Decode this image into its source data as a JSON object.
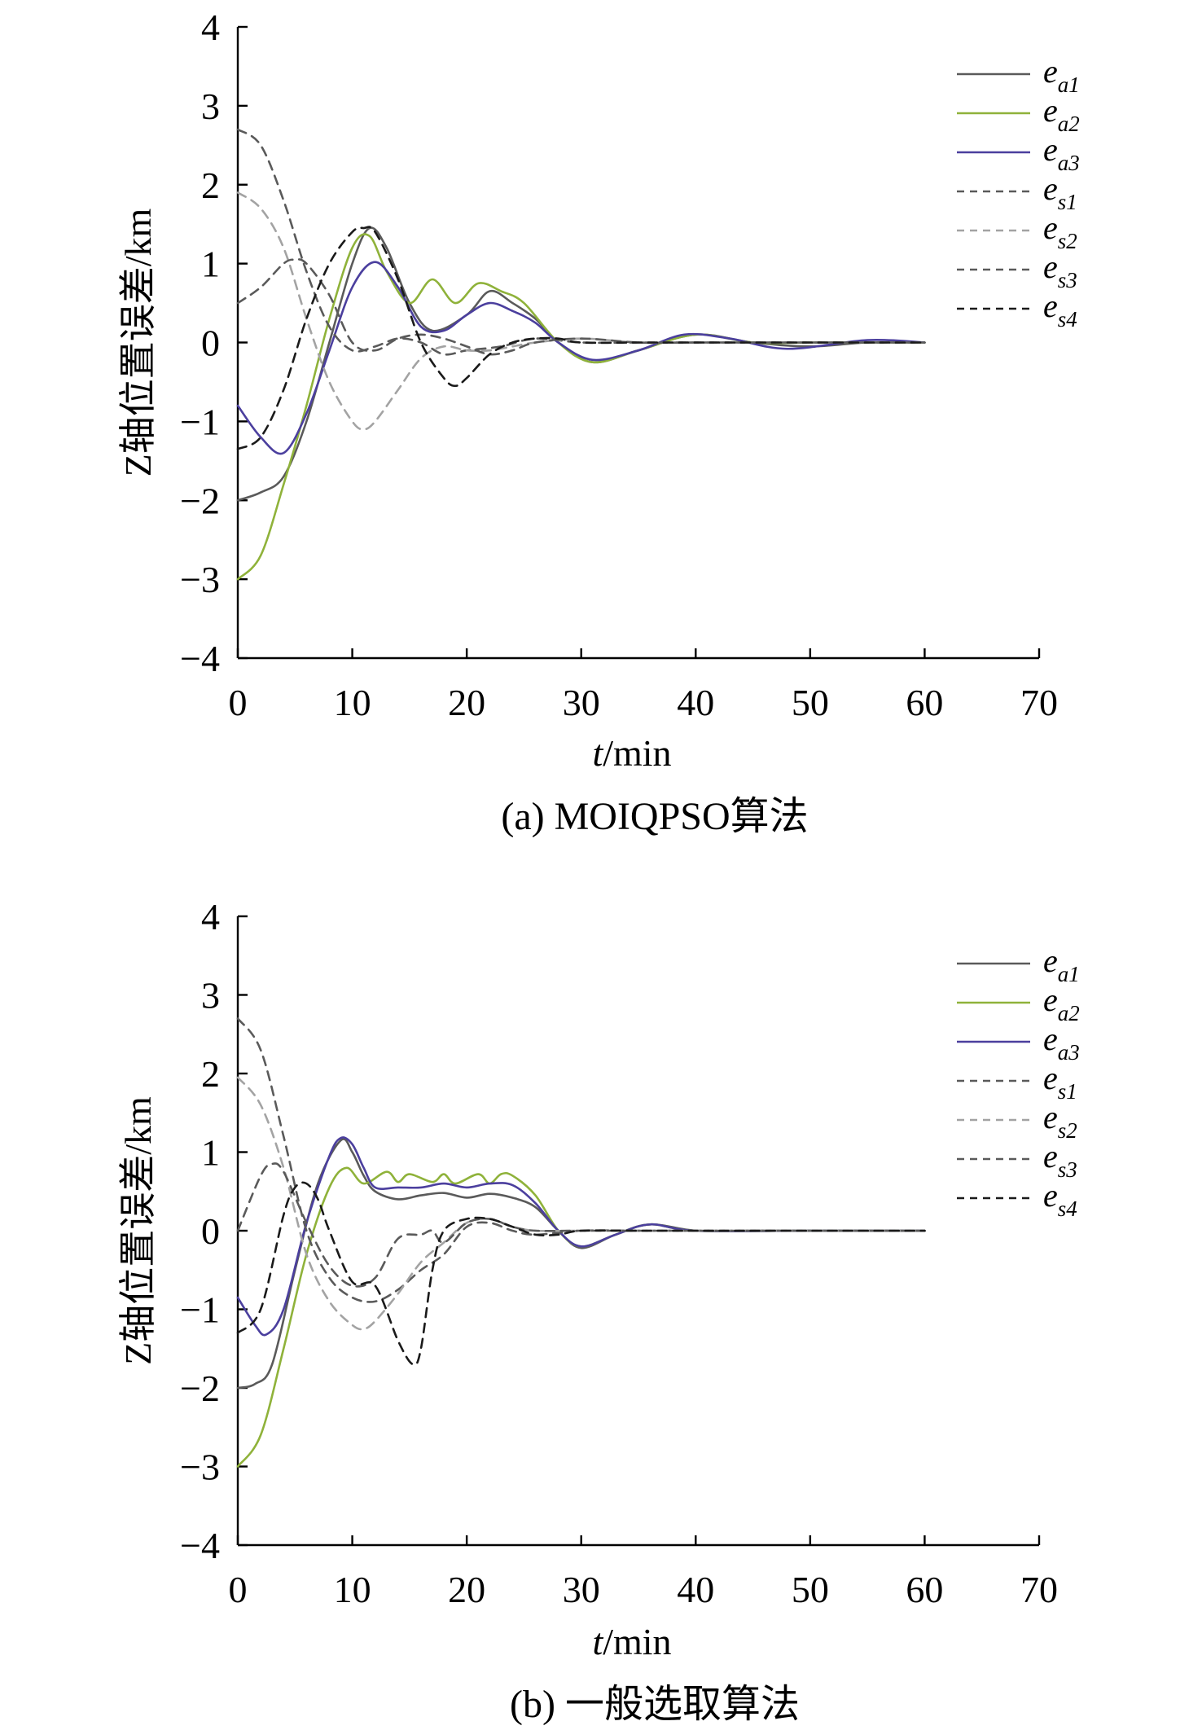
{
  "chart_data": [
    {
      "type": "line",
      "caption": "(a) MOIQPSO算法",
      "xlabel": "t/min",
      "ylabel": "Z轴位置误差/km",
      "xlim": [
        0,
        70
      ],
      "ylim": [
        -4,
        4
      ],
      "xticks": [
        "0",
        "10",
        "20",
        "30",
        "40",
        "50",
        "60",
        "70"
      ],
      "yticks": [
        "4",
        "3",
        "2",
        "1",
        "0",
        "−1",
        "−2",
        "−3",
        "−4"
      ],
      "grid": false,
      "legend_position": "top-right",
      "series": [
        {
          "name": "ea1",
          "color": "#5a5a5a",
          "dashed": false,
          "x": [
            0,
            2,
            4,
            6,
            8,
            10,
            11.5,
            13,
            15,
            17,
            20,
            22,
            24,
            26,
            28,
            31,
            35,
            40,
            45,
            50,
            55,
            60
          ],
          "y": [
            -2.0,
            -1.9,
            -1.7,
            -1.0,
            0.0,
            1.0,
            1.45,
            1.2,
            0.5,
            0.15,
            0.35,
            0.65,
            0.5,
            0.3,
            0.0,
            -0.25,
            -0.1,
            0.1,
            0.0,
            -0.05,
            0.0,
            0.0
          ]
        },
        {
          "name": "ea2",
          "color": "#8fb23a",
          "dashed": false,
          "x": [
            0,
            2,
            4,
            6,
            8,
            10,
            11.5,
            13,
            15,
            17,
            19,
            21,
            23,
            25,
            28,
            31,
            35,
            40,
            45,
            50,
            55,
            60
          ],
          "y": [
            -3.0,
            -2.7,
            -1.8,
            -0.8,
            0.3,
            1.2,
            1.35,
            0.9,
            0.5,
            0.8,
            0.5,
            0.75,
            0.65,
            0.5,
            0.0,
            -0.25,
            -0.1,
            0.1,
            0.0,
            0.0,
            0.0,
            0.0
          ]
        },
        {
          "name": "ea3",
          "color": "#4b3f9e",
          "dashed": false,
          "x": [
            0,
            2,
            4,
            6,
            8,
            10,
            12,
            14,
            16,
            18,
            20,
            22,
            24,
            26,
            28,
            31,
            35,
            39,
            43,
            48,
            55,
            60
          ],
          "y": [
            -0.8,
            -1.2,
            -1.4,
            -0.9,
            -0.1,
            0.7,
            1.02,
            0.7,
            0.2,
            0.15,
            0.35,
            0.5,
            0.4,
            0.25,
            0.0,
            -0.22,
            -0.1,
            0.1,
            0.05,
            -0.08,
            0.03,
            0.0
          ]
        },
        {
          "name": "es1",
          "color": "#5a5a5a",
          "dashed": true,
          "x": [
            0,
            2,
            4,
            6,
            8,
            10,
            12,
            14,
            16,
            18,
            20,
            23,
            26,
            30,
            35,
            40,
            50,
            60
          ],
          "y": [
            2.7,
            2.5,
            1.8,
            0.9,
            0.2,
            -0.1,
            -0.05,
            0.05,
            0.0,
            -0.15,
            -0.1,
            -0.05,
            0.05,
            0.0,
            0.0,
            0.0,
            0.0,
            0.0
          ]
        },
        {
          "name": "es2",
          "color": "#a3a3a3",
          "dashed": true,
          "x": [
            0,
            2,
            4,
            6,
            8,
            10,
            11,
            12,
            14,
            16,
            18,
            20,
            22,
            24,
            26,
            30,
            35,
            40,
            50,
            60
          ],
          "y": [
            1.9,
            1.7,
            1.2,
            0.3,
            -0.5,
            -1.0,
            -1.1,
            -1.0,
            -0.6,
            -0.2,
            -0.05,
            -0.1,
            -0.1,
            -0.05,
            0.0,
            0.05,
            0.0,
            0.0,
            0.0,
            0.0
          ]
        },
        {
          "name": "es3",
          "color": "#5a5a5a",
          "dashed": true,
          "x": [
            0,
            2,
            4,
            5,
            6,
            8,
            10,
            12,
            14,
            16,
            18,
            20,
            22,
            24,
            26,
            30,
            35,
            40,
            50,
            60
          ],
          "y": [
            0.5,
            0.7,
            1.0,
            1.05,
            1.0,
            0.6,
            0.0,
            -0.1,
            0.05,
            0.1,
            0.05,
            -0.05,
            -0.15,
            -0.1,
            0.0,
            0.05,
            0.0,
            0.0,
            0.0,
            0.0
          ]
        },
        {
          "name": "es4",
          "color": "#1a1a1a",
          "dashed": true,
          "x": [
            0,
            2,
            4,
            6,
            8,
            10,
            11,
            12,
            14,
            16,
            18,
            19,
            20,
            22,
            24,
            26,
            28,
            30,
            35,
            40,
            50,
            60
          ],
          "y": [
            -1.35,
            -1.2,
            -0.6,
            0.3,
            1.0,
            1.4,
            1.45,
            1.4,
            0.8,
            0.0,
            -0.45,
            -0.55,
            -0.45,
            -0.15,
            0.0,
            0.05,
            0.05,
            0.0,
            0.0,
            0.0,
            0.0,
            0.0
          ]
        }
      ]
    },
    {
      "type": "line",
      "caption": "(b) 一般选取算法",
      "xlabel": "t/min",
      "ylabel": "Z轴位置误差/km",
      "xlim": [
        0,
        70
      ],
      "ylim": [
        -4,
        4
      ],
      "xticks": [
        "0",
        "10",
        "20",
        "30",
        "40",
        "50",
        "60",
        "70"
      ],
      "yticks": [
        "4",
        "3",
        "2",
        "1",
        "0",
        "−1",
        "−2",
        "−3",
        "−4"
      ],
      "grid": false,
      "legend_position": "top-right",
      "series": [
        {
          "name": "ea1",
          "color": "#5a5a5a",
          "dashed": false,
          "x": [
            0,
            1.5,
            3,
            5,
            7,
            9,
            10,
            11,
            12,
            14,
            16,
            18,
            20,
            22,
            24,
            26,
            28,
            30,
            33,
            36,
            40,
            45,
            50,
            60
          ],
          "y": [
            -2.0,
            -1.95,
            -1.7,
            -0.5,
            0.6,
            1.15,
            1.0,
            0.7,
            0.5,
            0.4,
            0.45,
            0.48,
            0.42,
            0.47,
            0.42,
            0.3,
            0.0,
            -0.22,
            -0.05,
            0.08,
            0.0,
            0.0,
            0.0,
            0.0
          ]
        },
        {
          "name": "ea2",
          "color": "#8fb23a",
          "dashed": false,
          "x": [
            0,
            2,
            4,
            6,
            8,
            9.5,
            11,
            13,
            14,
            15,
            17,
            18,
            19,
            21,
            22,
            23,
            24,
            26,
            28,
            30,
            33,
            36,
            40,
            50,
            60
          ],
          "y": [
            -3.0,
            -2.6,
            -1.5,
            -0.3,
            0.55,
            0.8,
            0.6,
            0.75,
            0.62,
            0.72,
            0.62,
            0.72,
            0.6,
            0.72,
            0.6,
            0.72,
            0.7,
            0.45,
            0.0,
            -0.2,
            -0.05,
            0.08,
            0.0,
            0.0,
            0.0
          ]
        },
        {
          "name": "ea3",
          "color": "#4b3f9e",
          "dashed": false,
          "x": [
            0,
            1.5,
            2.5,
            4,
            6,
            8,
            9,
            10,
            11,
            12,
            14,
            16,
            18,
            20,
            22,
            24,
            26,
            28,
            30,
            33,
            36,
            40,
            50,
            60
          ],
          "y": [
            -0.85,
            -1.2,
            -1.32,
            -1.0,
            0.1,
            0.95,
            1.18,
            1.1,
            0.8,
            0.55,
            0.55,
            0.55,
            0.6,
            0.55,
            0.6,
            0.58,
            0.35,
            0.0,
            -0.2,
            -0.05,
            0.08,
            0.0,
            0.0,
            0.0
          ]
        },
        {
          "name": "es1",
          "color": "#5a5a5a",
          "dashed": true,
          "x": [
            0,
            2,
            4,
            6,
            8,
            10,
            12,
            14,
            16,
            18,
            20,
            22,
            24,
            26,
            30,
            35,
            40,
            50,
            60
          ],
          "y": [
            2.7,
            2.3,
            1.2,
            0.0,
            -0.6,
            -0.85,
            -0.9,
            -0.75,
            -0.5,
            -0.3,
            0.05,
            0.1,
            0.0,
            -0.05,
            0.0,
            0.0,
            0.0,
            0.0,
            0.0
          ]
        },
        {
          "name": "es2",
          "color": "#a3a3a3",
          "dashed": true,
          "x": [
            0,
            2,
            4,
            6,
            8,
            10,
            11,
            12,
            14,
            16,
            18,
            20,
            22,
            24,
            26,
            30,
            35,
            40,
            50,
            60
          ],
          "y": [
            1.95,
            1.6,
            0.8,
            -0.3,
            -0.9,
            -1.2,
            -1.25,
            -1.15,
            -0.8,
            -0.4,
            -0.15,
            0.1,
            0.15,
            0.05,
            0.0,
            0.0,
            0.0,
            0.0,
            0.0,
            0.0
          ]
        },
        {
          "name": "es3",
          "color": "#5a5a5a",
          "dashed": true,
          "x": [
            0,
            2,
            3,
            4,
            6,
            8,
            10,
            12,
            14,
            16,
            17,
            18,
            20,
            22,
            24,
            26,
            30,
            35,
            40,
            50,
            60
          ],
          "y": [
            0.0,
            0.7,
            0.85,
            0.75,
            0.1,
            -0.45,
            -0.7,
            -0.6,
            -0.1,
            -0.05,
            0.0,
            -0.15,
            0.1,
            0.15,
            0.05,
            0.0,
            0.0,
            0.0,
            0.0,
            0.0,
            0.0
          ]
        },
        {
          "name": "es4",
          "color": "#1a1a1a",
          "dashed": true,
          "x": [
            0,
            2,
            4,
            5,
            6,
            7,
            8,
            10,
            12,
            14,
            15.3,
            16,
            17,
            18,
            20,
            22,
            24,
            26,
            28,
            30,
            35,
            40,
            50,
            60
          ],
          "y": [
            -1.3,
            -1.0,
            0.2,
            0.55,
            0.6,
            0.4,
            0.0,
            -0.65,
            -0.7,
            -1.4,
            -1.7,
            -1.5,
            -0.5,
            0.0,
            0.15,
            0.15,
            0.05,
            -0.05,
            -0.05,
            0.0,
            0.0,
            0.0,
            0.0,
            0.0
          ]
        }
      ]
    }
  ]
}
